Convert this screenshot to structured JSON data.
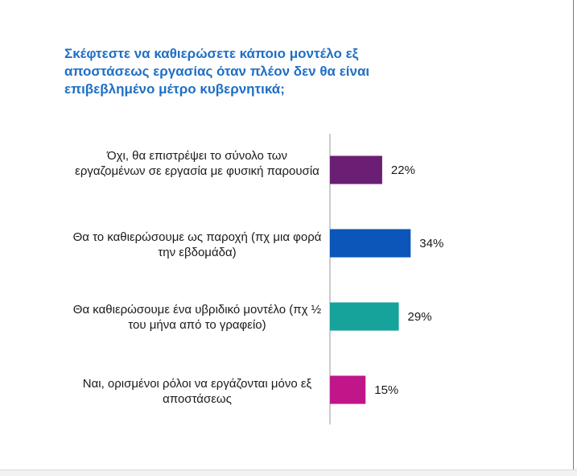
{
  "title": "Σκέφτεστε να καθιερώσετε κάποιο μοντέλο εξ αποστάσεως εργασίας όταν πλέον δεν θα είναι επιβεβλημένο μέτρο κυβερνητικά;",
  "chart_data": {
    "type": "bar",
    "orientation": "horizontal",
    "title": "Σκέφτεστε να καθιερώσετε κάποιο μοντέλο εξ αποστάσεως εργασίας όταν πλέον δεν θα είναι επιβεβλημένο μέτρο κυβερνητικά;",
    "categories": [
      "Όχι, θα επιστρέψει το σύνολο των εργαζομένων σε εργασία με φυσική παρουσία",
      "Θα το καθιερώσουμε ως παροχή (πχ μια φορά την εβδομάδα)",
      "Θα καθιερώσουμε ένα υβριδικό μοντέλο (πχ ½ του μήνα από το γραφείο)",
      "Ναι, ορισμένοι ρόλοι να εργάζονται μόνο εξ αποστάσεως"
    ],
    "values": [
      22,
      34,
      29,
      15
    ],
    "value_labels": [
      "22%",
      "34%",
      "29%",
      "15%"
    ],
    "colors": [
      "#6a1f74",
      "#0b56b8",
      "#16a39b",
      "#c0168a"
    ],
    "grid": false,
    "legend": "none"
  }
}
